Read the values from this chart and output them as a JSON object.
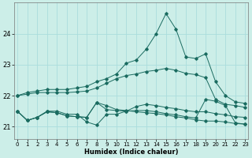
{
  "xlabel": "Humidex (Indice chaleur)",
  "background_color": "#cceee8",
  "grid_color": "#aadddd",
  "line_color": "#1a6b60",
  "x_ticks": [
    0,
    1,
    2,
    3,
    4,
    5,
    6,
    7,
    8,
    9,
    10,
    11,
    12,
    13,
    14,
    15,
    16,
    17,
    18,
    19,
    20,
    21,
    22,
    23
  ],
  "y_ticks": [
    21,
    22,
    23,
    24
  ],
  "xlim": [
    -0.3,
    23.3
  ],
  "ylim": [
    20.6,
    25.0
  ],
  "series": {
    "line1": [
      22.0,
      22.1,
      22.15,
      22.2,
      22.2,
      22.2,
      22.25,
      22.3,
      22.45,
      22.55,
      22.7,
      23.05,
      23.15,
      23.5,
      24.0,
      24.65,
      24.15,
      23.25,
      23.2,
      23.35,
      22.45,
      22.0,
      21.8,
      21.75
    ],
    "line2": [
      22.0,
      22.05,
      22.1,
      22.1,
      22.1,
      22.1,
      22.12,
      22.15,
      22.25,
      22.4,
      22.55,
      22.65,
      22.7,
      22.78,
      22.82,
      22.88,
      22.82,
      22.72,
      22.68,
      22.58,
      21.88,
      21.72,
      21.68,
      21.62
    ],
    "line3": [
      21.5,
      21.2,
      21.3,
      21.5,
      21.5,
      21.4,
      21.4,
      21.15,
      21.05,
      21.4,
      21.4,
      21.5,
      21.65,
      21.72,
      21.68,
      21.62,
      21.58,
      21.52,
      21.48,
      21.48,
      21.42,
      21.38,
      21.32,
      21.3
    ],
    "line4": [
      21.5,
      21.2,
      21.3,
      21.48,
      21.45,
      21.35,
      21.32,
      21.3,
      21.78,
      21.68,
      21.55,
      21.52,
      21.48,
      21.45,
      21.42,
      21.38,
      21.32,
      21.28,
      21.22,
      21.18,
      21.18,
      21.15,
      21.1,
      21.08
    ],
    "line5": [
      21.5,
      21.2,
      21.3,
      21.48,
      21.45,
      21.35,
      21.32,
      21.3,
      21.78,
      21.55,
      21.52,
      21.5,
      21.52,
      21.52,
      21.48,
      21.42,
      21.38,
      21.32,
      21.28,
      21.88,
      21.82,
      21.68,
      21.12,
      21.08
    ]
  }
}
